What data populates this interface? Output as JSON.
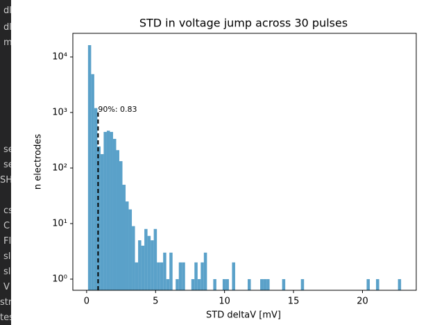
{
  "sidebar": {
    "items": [
      "dl",
      "dl",
      "m",
      "se",
      "se",
      "SH",
      "cs",
      "C",
      "Fl",
      "sl",
      "sl",
      "V",
      "str",
      "tes"
    ]
  },
  "chart_data": {
    "type": "histogram",
    "title": "STD in voltage jump across 30 pulses",
    "x_label": "STD deltaV [mV]",
    "y_label": "n electrodes",
    "color": "#5aa1c9",
    "log_y": true,
    "bins": [
      0.1,
      0.327,
      0.554,
      0.781,
      1.008,
      1.235,
      1.462,
      1.689,
      1.916,
      2.143,
      2.37,
      2.597,
      2.824,
      3.051,
      3.278,
      3.505,
      3.732,
      3.959,
      4.186,
      4.413,
      4.64,
      4.867,
      5.094,
      5.321,
      5.548,
      5.775,
      6.002,
      6.229,
      6.456,
      6.683,
      6.91,
      7.137,
      7.364,
      7.591,
      7.818,
      8.045,
      8.272,
      8.499,
      8.726,
      8.953,
      9.18,
      9.407,
      9.634,
      9.861,
      10.088,
      10.315,
      10.542,
      10.769,
      10.996,
      11.223,
      11.45,
      11.677,
      11.904,
      12.131,
      12.358,
      12.585,
      12.812,
      13.039,
      13.266,
      13.493,
      13.72,
      13.947,
      14.174,
      14.401,
      14.628,
      14.855,
      15.082,
      15.309,
      15.536,
      15.763,
      15.99,
      16.217,
      16.444,
      16.671,
      16.898,
      17.125,
      17.352,
      17.579,
      17.806,
      18.033,
      18.26,
      18.487,
      18.714,
      18.941,
      19.168,
      19.395,
      19.622,
      19.849,
      20.076,
      20.303,
      20.53,
      20.757,
      20.984,
      21.211,
      21.438,
      21.665,
      21.892,
      22.119,
      22.346,
      22.573,
      22.8
    ],
    "values": [
      16300,
      4900,
      1200,
      245,
      178,
      447,
      470,
      447,
      335,
      210,
      133,
      50,
      25,
      18,
      9,
      2,
      5,
      4,
      8,
      6,
      5,
      8,
      2,
      2,
      3,
      1,
      3,
      0,
      1,
      2,
      2,
      0,
      0,
      1,
      2,
      1,
      2,
      3,
      0,
      0,
      1,
      0,
      0,
      1,
      1,
      0,
      2,
      0,
      0,
      0,
      0,
      1,
      0,
      0,
      0,
      1,
      1,
      1,
      0,
      0,
      0,
      0,
      1,
      0,
      0,
      0,
      0,
      0,
      1,
      0,
      0,
      0,
      0,
      0,
      0,
      0,
      0,
      0,
      0,
      0,
      0,
      0,
      0,
      0,
      0,
      0,
      0,
      0,
      0,
      1,
      0,
      0,
      1,
      0,
      0,
      0,
      0,
      0,
      0,
      1
    ],
    "annotation": {
      "text": "90%: 0.83",
      "x": 0.83,
      "y": 1000
    },
    "xlim": [
      -1.0,
      23.9
    ],
    "xticks": [
      0,
      5,
      10,
      15,
      20
    ],
    "ylim": [
      0.63,
      26600
    ],
    "yticks": [
      {
        "value": 1,
        "label": "10⁰"
      },
      {
        "value": 10,
        "label": "10¹"
      },
      {
        "value": 100,
        "label": "10²"
      },
      {
        "value": 1000,
        "label": "10³"
      },
      {
        "value": 10000,
        "label": "10⁴"
      }
    ]
  }
}
